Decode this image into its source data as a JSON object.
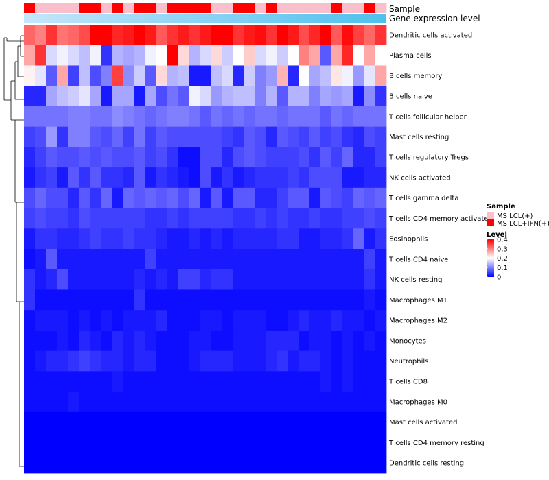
{
  "chart_data": {
    "type": "heatmap",
    "title": "",
    "annotation_labels": {
      "sample": "Sample",
      "level_bar": "Gene expression level"
    },
    "rows": [
      "Dendritic cells activated",
      "Plasma cells",
      "B cells memory",
      "B cells naive",
      "T cells follicular helper",
      "Mast cells resting",
      "T cells regulatory  Tregs",
      "NK cells activated",
      "T cells gamma delta",
      "T cells CD4 memory activated",
      "Eosinophils",
      "T cells CD4 naive",
      "NK cells resting",
      "Macrophages M1",
      "Macrophages M2",
      "Monocytes",
      "Neutrophils",
      "T cells CD8",
      "Macrophages M0",
      "Mast cells activated",
      "T cells CD4 memory resting",
      "Dendritic cells resting"
    ],
    "samples": [
      "IFN",
      "LCL",
      "LCL",
      "LCL",
      "LCL",
      "IFN",
      "IFN",
      "LCL",
      "IFN",
      "LCL",
      "IFN",
      "IFN",
      "LCL",
      "IFN",
      "IFN",
      "IFN",
      "IFN",
      "LCL",
      "LCL",
      "IFN",
      "IFN",
      "LCL",
      "IFN",
      "LCL",
      "LCL",
      "LCL",
      "LCL",
      "LCL",
      "IFN",
      "LCL",
      "LCL",
      "IFN",
      "LCL"
    ],
    "values": [
      [
        0.32,
        0.3,
        0.36,
        0.31,
        0.32,
        0.34,
        0.42,
        0.42,
        0.37,
        0.38,
        0.4,
        0.38,
        0.33,
        0.36,
        0.38,
        0.36,
        0.38,
        0.4,
        0.41,
        0.36,
        0.38,
        0.39,
        0.36,
        0.4,
        0.38,
        0.34,
        0.37,
        0.4,
        0.33,
        0.39,
        0.35,
        0.32,
        0.36
      ],
      [
        0.27,
        0.36,
        0.17,
        0.19,
        0.17,
        0.15,
        0.19,
        0.04,
        0.14,
        0.13,
        0.14,
        0.19,
        0.2,
        0.4,
        0.23,
        0.14,
        0.17,
        0.23,
        0.16,
        0.2,
        0.24,
        0.17,
        0.19,
        0.16,
        0.2,
        0.3,
        0.27,
        0.07,
        0.27,
        0.37,
        0.2,
        0.27,
        0.2
      ],
      [
        0.21,
        0.18,
        0.07,
        0.27,
        0.05,
        0.15,
        0.06,
        0.1,
        0.35,
        0.11,
        0.16,
        0.07,
        0.23,
        0.14,
        0.15,
        0.02,
        0.02,
        0.15,
        0.17,
        0.03,
        0.16,
        0.1,
        0.12,
        0.26,
        0.03,
        0.2,
        0.13,
        0.15,
        0.22,
        0.19,
        0.12,
        0.18,
        0.27
      ],
      [
        0.03,
        0.03,
        0.13,
        0.15,
        0.16,
        0.18,
        0.13,
        0.02,
        0.13,
        0.13,
        0.02,
        0.13,
        0.06,
        0.09,
        0.07,
        0.19,
        0.17,
        0.12,
        0.14,
        0.15,
        0.15,
        0.1,
        0.14,
        0.07,
        0.14,
        0.14,
        0.1,
        0.13,
        0.12,
        0.13,
        0.02,
        0.11,
        0.04
      ],
      [
        0.09,
        0.09,
        0.09,
        0.09,
        0.1,
        0.1,
        0.09,
        0.09,
        0.11,
        0.1,
        0.09,
        0.08,
        0.09,
        0.1,
        0.1,
        0.09,
        0.07,
        0.09,
        0.08,
        0.09,
        0.08,
        0.09,
        0.09,
        0.08,
        0.09,
        0.09,
        0.09,
        0.07,
        0.09,
        0.08,
        0.09,
        0.09,
        0.09
      ],
      [
        0.05,
        0.06,
        0.12,
        0.04,
        0.1,
        0.1,
        0.07,
        0.06,
        0.08,
        0.05,
        0.09,
        0.05,
        0.07,
        0.06,
        0.06,
        0.06,
        0.06,
        0.06,
        0.05,
        0.04,
        0.07,
        0.06,
        0.03,
        0.07,
        0.06,
        0.05,
        0.07,
        0.05,
        0.06,
        0.04,
        0.03,
        0.06,
        0.05
      ],
      [
        0.03,
        0.05,
        0.07,
        0.06,
        0.06,
        0.07,
        0.06,
        0.07,
        0.06,
        0.06,
        0.07,
        0.05,
        0.06,
        0.04,
        0.01,
        0.01,
        0.06,
        0.06,
        0.03,
        0.06,
        0.07,
        0.06,
        0.05,
        0.05,
        0.05,
        0.06,
        0.04,
        0.07,
        0.05,
        0.08,
        0.03,
        0.03,
        0.05
      ],
      [
        0.02,
        0.04,
        0.05,
        0.02,
        0.07,
        0.04,
        0.07,
        0.04,
        0.04,
        0.03,
        0.07,
        0.02,
        0.04,
        0.03,
        0.02,
        0.01,
        0.06,
        0.02,
        0.04,
        0.02,
        0.03,
        0.04,
        0.04,
        0.04,
        0.05,
        0.04,
        0.06,
        0.06,
        0.06,
        0.02,
        0.02,
        0.03,
        0.03
      ],
      [
        0.06,
        0.08,
        0.06,
        0.06,
        0.03,
        0.07,
        0.04,
        0.08,
        0.02,
        0.08,
        0.07,
        0.08,
        0.07,
        0.08,
        0.06,
        0.08,
        0.02,
        0.07,
        0.02,
        0.07,
        0.07,
        0.03,
        0.03,
        0.05,
        0.07,
        0.07,
        0.02,
        0.07,
        0.06,
        0.05,
        0.08,
        0.07,
        0.08
      ],
      [
        0.05,
        0.06,
        0.05,
        0.05,
        0.04,
        0.06,
        0.05,
        0.05,
        0.05,
        0.05,
        0.05,
        0.04,
        0.04,
        0.05,
        0.04,
        0.05,
        0.05,
        0.05,
        0.05,
        0.04,
        0.04,
        0.05,
        0.04,
        0.05,
        0.04,
        0.04,
        0.05,
        0.04,
        0.04,
        0.05,
        0.05,
        0.06,
        0.05
      ],
      [
        0.02,
        0.04,
        0.04,
        0.03,
        0.03,
        0.04,
        0.05,
        0.04,
        0.04,
        0.05,
        0.04,
        0.04,
        0.03,
        0.02,
        0.02,
        0.03,
        0.02,
        0.03,
        0.02,
        0.03,
        0.03,
        0.03,
        0.03,
        0.04,
        0.04,
        0.02,
        0.02,
        0.03,
        0.03,
        0.04,
        0.08,
        0.02,
        0.04
      ],
      [
        0.01,
        0.02,
        0.07,
        0.02,
        0.02,
        0.02,
        0.02,
        0.02,
        0.02,
        0.02,
        0.02,
        0.05,
        0.02,
        0.02,
        0.02,
        0.02,
        0.02,
        0.02,
        0.02,
        0.02,
        0.02,
        0.02,
        0.02,
        0.02,
        0.02,
        0.02,
        0.02,
        0.02,
        0.02,
        0.02,
        0.02,
        0.05,
        0.02
      ],
      [
        0.04,
        0.02,
        0.03,
        0.06,
        0.02,
        0.02,
        0.02,
        0.02,
        0.02,
        0.02,
        0.03,
        0.02,
        0.03,
        0.02,
        0.05,
        0.05,
        0.03,
        0.04,
        0.04,
        0.02,
        0.02,
        0.02,
        0.02,
        0.02,
        0.02,
        0.02,
        0.02,
        0.02,
        0.02,
        0.02,
        0.02,
        0.04,
        0.02
      ],
      [
        0.04,
        0.01,
        0.01,
        0.01,
        0.01,
        0.01,
        0.01,
        0.01,
        0.01,
        0.01,
        0.04,
        0.01,
        0.01,
        0.01,
        0.01,
        0.01,
        0.01,
        0.01,
        0.01,
        0.01,
        0.01,
        0.01,
        0.01,
        0.01,
        0.01,
        0.01,
        0.01,
        0.01,
        0.01,
        0.01,
        0.01,
        0.02,
        0.01
      ],
      [
        0.01,
        0.02,
        0.02,
        0.02,
        0.01,
        0.02,
        0.01,
        0.02,
        0.01,
        0.02,
        0.02,
        0.02,
        0.03,
        0.01,
        0.01,
        0.01,
        0.02,
        0.02,
        0.01,
        0.02,
        0.02,
        0.02,
        0.01,
        0.01,
        0.02,
        0.03,
        0.02,
        0.02,
        0.03,
        0.02,
        0.02,
        0.01,
        0.02
      ],
      [
        0.01,
        0.01,
        0.01,
        0.02,
        0.01,
        0.03,
        0.02,
        0.01,
        0.03,
        0.02,
        0.03,
        0.02,
        0.01,
        0.01,
        0.01,
        0.02,
        0.02,
        0.01,
        0.01,
        0.02,
        0.02,
        0.02,
        0.03,
        0.03,
        0.03,
        0.01,
        0.02,
        0.02,
        0.01,
        0.02,
        0.01,
        0.02,
        0.01
      ],
      [
        0.01,
        0.02,
        0.03,
        0.03,
        0.04,
        0.05,
        0.04,
        0.03,
        0.03,
        0.02,
        0.03,
        0.03,
        0.01,
        0.01,
        0.01,
        0.02,
        0.03,
        0.03,
        0.03,
        0.02,
        0.02,
        0.02,
        0.03,
        0.04,
        0.02,
        0.03,
        0.03,
        0.02,
        0.01,
        0.02,
        0.01,
        0.01,
        0.01
      ],
      [
        0.01,
        0.01,
        0.01,
        0.01,
        0.01,
        0.01,
        0.01,
        0.01,
        0.02,
        0.01,
        0.01,
        0.01,
        0.01,
        0.01,
        0.01,
        0.01,
        0.01,
        0.01,
        0.01,
        0.01,
        0.01,
        0.01,
        0.01,
        0.01,
        0.01,
        0.01,
        0.01,
        0.02,
        0.01,
        0.02,
        0.01,
        0.01,
        0.01
      ],
      [
        0.01,
        0.01,
        0.01,
        0.01,
        0.02,
        0.01,
        0.01,
        0.01,
        0.01,
        0.01,
        0.01,
        0.01,
        0.01,
        0.01,
        0.01,
        0.01,
        0.01,
        0.01,
        0.01,
        0.01,
        0.01,
        0.01,
        0.01,
        0.01,
        0.01,
        0.01,
        0.01,
        0.01,
        0.01,
        0.01,
        0.01,
        0.01,
        0.01
      ],
      [
        0.0,
        0.0,
        0.0,
        0.0,
        0.0,
        0.0,
        0.0,
        0.0,
        0.0,
        0.0,
        0.0,
        0.0,
        0.0,
        0.0,
        0.0,
        0.0,
        0.0,
        0.0,
        0.0,
        0.0,
        0.0,
        0.0,
        0.0,
        0.0,
        0.0,
        0.0,
        0.0,
        0.0,
        0.0,
        0.0,
        0.0,
        0.0,
        0.0
      ],
      [
        0.0,
        0.0,
        0.0,
        0.0,
        0.0,
        0.0,
        0.0,
        0.0,
        0.0,
        0.0,
        0.0,
        0.0,
        0.0,
        0.0,
        0.0,
        0.0,
        0.0,
        0.0,
        0.0,
        0.0,
        0.0,
        0.0,
        0.0,
        0.0,
        0.0,
        0.0,
        0.0,
        0.0,
        0.0,
        0.0,
        0.0,
        0.0,
        0.0
      ],
      [
        0.0,
        0.0,
        0.0,
        0.0,
        0.0,
        0.0,
        0.0,
        0.0,
        0.0,
        0.0,
        0.0,
        0.0,
        0.0,
        0.0,
        0.0,
        0.0,
        0.0,
        0.0,
        0.0,
        0.0,
        0.0,
        0.0,
        0.0,
        0.0,
        0.0,
        0.0,
        0.0,
        0.0,
        0.0,
        0.0,
        0.0,
        0.0,
        0.0
      ]
    ],
    "legend_sample": {
      "title": "Sample",
      "items": [
        {
          "key": "LCL",
          "label": "MS LCL(+)",
          "color": "#f9c0cb"
        },
        {
          "key": "IFN",
          "label": "MS LCL+IFN(+)",
          "color": "#ff0000"
        }
      ]
    },
    "legend_level": {
      "title": "Level",
      "ticks": [
        "0.4",
        "0.3",
        "0.2",
        "0.1",
        "0"
      ],
      "tick_values": [
        0.4,
        0.3,
        0.2,
        0.1,
        0
      ],
      "range": [
        0,
        0.4
      ],
      "colors": {
        "low": "#0000ff",
        "mid": "#ffffff",
        "high": "#ff0000"
      }
    }
  }
}
